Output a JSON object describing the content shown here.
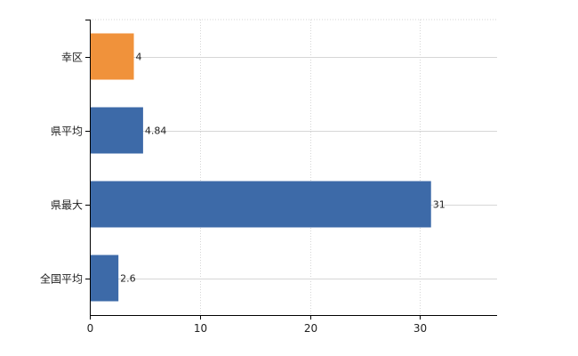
{
  "chart_data": {
    "type": "bar",
    "orientation": "horizontal",
    "categories": [
      "幸区",
      "県平均",
      "県最大",
      "全国平均"
    ],
    "values": [
      4,
      4.84,
      31,
      2.6
    ],
    "data_labels": [
      "4",
      "4.84",
      "31",
      "2.6"
    ],
    "bar_colors": [
      "#f0923b",
      "#3d6aa8",
      "#3d6aa8",
      "#3d6aa8"
    ],
    "xlim": [
      0,
      37
    ],
    "xticks": [
      0,
      10,
      20,
      30
    ],
    "grid": true,
    "legend": "none",
    "title": "",
    "xlabel": "",
    "ylabel": ""
  }
}
